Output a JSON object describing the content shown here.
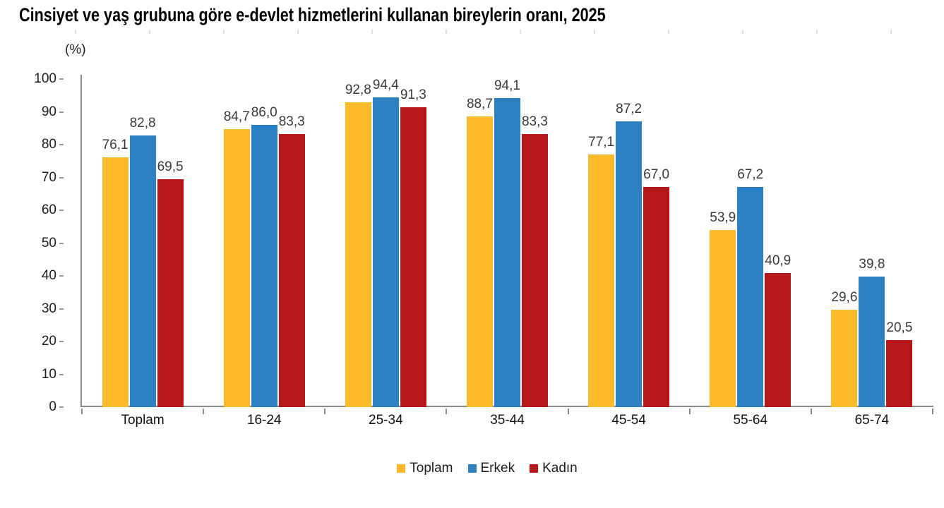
{
  "title": "Cinsiyet ve yaş grubuna göre e-devlet hizmetlerini kullanan bireylerin oranı, 2025",
  "y_axis_unit": "(%)",
  "chart_data": {
    "type": "bar",
    "categories": [
      "Toplam",
      "16-24",
      "25-34",
      "35-44",
      "45-54",
      "55-64",
      "65-74"
    ],
    "series": [
      {
        "name": "Toplam",
        "color": "#FBB92C",
        "values": [
          76.1,
          84.7,
          92.8,
          88.7,
          77.1,
          53.9,
          29.6
        ],
        "labels": [
          "76,1",
          "84,7",
          "92,8",
          "88,7",
          "77,1",
          "53,9",
          "29,6"
        ]
      },
      {
        "name": "Erkek",
        "color": "#2C80C4",
        "values": [
          82.8,
          86.0,
          94.4,
          94.1,
          87.2,
          67.2,
          39.8
        ],
        "labels": [
          "82,8",
          "86,0",
          "94,4",
          "94,1",
          "87,2",
          "67,2",
          "39,8"
        ]
      },
      {
        "name": "Kadın",
        "color": "#B5181B",
        "values": [
          69.5,
          83.3,
          91.3,
          83.3,
          67.0,
          40.9,
          20.5
        ],
        "labels": [
          "69,5",
          "83,3",
          "91,3",
          "83,3",
          "67,0",
          "40,9",
          "20,5"
        ]
      }
    ],
    "ylim": [
      0,
      100
    ],
    "yticks": [
      0,
      10,
      20,
      30,
      40,
      50,
      60,
      70,
      80,
      90,
      100
    ],
    "grid": false,
    "legend_position": "bottom"
  },
  "legend": {
    "items": [
      {
        "label": "Toplam",
        "color": "#FBB92C"
      },
      {
        "label": "Erkek",
        "color": "#2C80C4"
      },
      {
        "label": "Kadın",
        "color": "#B5181B"
      }
    ]
  }
}
